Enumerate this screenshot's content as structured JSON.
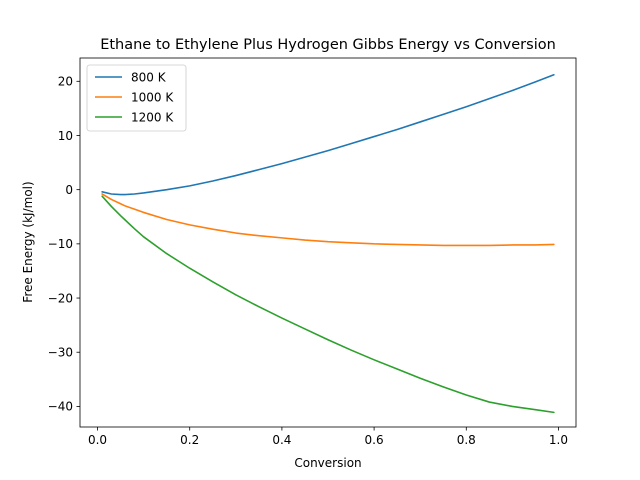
{
  "chart_data": {
    "type": "line",
    "title": "Ethane to Ethylene Plus Hydrogen Gibbs Energy vs Conversion",
    "xlabel": "Conversion",
    "ylabel": "Free Energy (kJ/mol)",
    "xlim": [
      -0.038,
      1.038
    ],
    "ylim": [
      -43.8,
      24.3
    ],
    "xticks": [
      0.0,
      0.2,
      0.4,
      0.6,
      0.8,
      1.0
    ],
    "xtick_labels": [
      "0.0",
      "0.2",
      "0.4",
      "0.6",
      "0.8",
      "1.0"
    ],
    "yticks": [
      -40,
      -30,
      -20,
      -10,
      0,
      10,
      20
    ],
    "ytick_labels": [
      "−40",
      "−30",
      "−20",
      "−10",
      "0",
      "10",
      "20"
    ],
    "grid": false,
    "legend_position": "top-left",
    "x": [
      0.01,
      0.03,
      0.05,
      0.06,
      0.08,
      0.1,
      0.15,
      0.2,
      0.25,
      0.3,
      0.35,
      0.4,
      0.45,
      0.5,
      0.55,
      0.6,
      0.65,
      0.7,
      0.75,
      0.8,
      0.85,
      0.9,
      0.95,
      0.99
    ],
    "series": [
      {
        "name": "800 K",
        "color": "#1f77b4",
        "values": [
          -0.4,
          -0.8,
          -0.9,
          -0.9,
          -0.8,
          -0.6,
          0.0,
          0.7,
          1.6,
          2.6,
          3.7,
          4.8,
          6.0,
          7.2,
          8.5,
          9.8,
          11.1,
          12.5,
          13.9,
          15.3,
          16.8,
          18.3,
          19.9,
          21.2
        ]
      },
      {
        "name": "1000 K",
        "color": "#ff7f0e",
        "values": [
          -0.8,
          -1.8,
          -2.6,
          -3.0,
          -3.6,
          -4.2,
          -5.5,
          -6.5,
          -7.3,
          -8.0,
          -8.5,
          -8.9,
          -9.3,
          -9.6,
          -9.8,
          -10.0,
          -10.1,
          -10.2,
          -10.3,
          -10.3,
          -10.3,
          -10.2,
          -10.2,
          -10.1
        ]
      },
      {
        "name": "1200 K",
        "color": "#2ca02c",
        "values": [
          -1.2,
          -3.1,
          -4.8,
          -5.6,
          -7.2,
          -8.7,
          -11.8,
          -14.5,
          -17.0,
          -19.4,
          -21.6,
          -23.7,
          -25.7,
          -27.7,
          -29.6,
          -31.4,
          -33.1,
          -34.8,
          -36.4,
          -37.9,
          -39.2,
          -40.0,
          -40.6,
          -41.1
        ]
      }
    ]
  }
}
